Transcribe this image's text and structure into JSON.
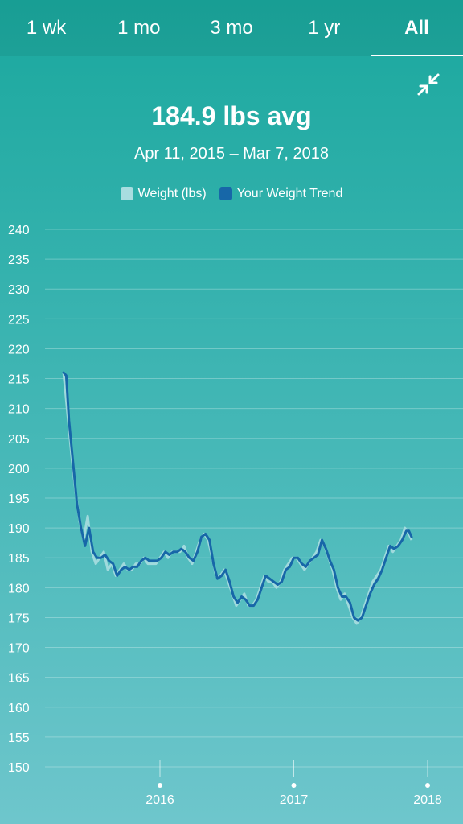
{
  "tabs": [
    {
      "label": "1 wk",
      "active": false
    },
    {
      "label": "1 mo",
      "active": false
    },
    {
      "label": "3 mo",
      "active": false
    },
    {
      "label": "1 yr",
      "active": false
    },
    {
      "label": "All",
      "active": true
    }
  ],
  "icons": {
    "collapse": "collapse-arrows-icon"
  },
  "summary": {
    "average": "184.9 lbs avg",
    "date_range": "Apr 11, 2015 – Mar 7, 2018"
  },
  "colors": {
    "weight": "#a8dde0",
    "trend": "#1767a8",
    "background_top": "#1aa89e",
    "background_bottom": "#6ec6cc"
  },
  "chart_data": {
    "type": "line",
    "xlim": [
      2015.27,
      2018.25
    ],
    "ylim": [
      150,
      240
    ],
    "y_ticks": [
      150,
      155,
      160,
      165,
      170,
      175,
      180,
      185,
      190,
      195,
      200,
      205,
      210,
      215,
      220,
      225,
      230,
      235,
      240
    ],
    "x_ticks": [
      {
        "value": 2016.0,
        "label": "2016"
      },
      {
        "value": 2017.0,
        "label": "2017"
      },
      {
        "value": 2018.0,
        "label": "2018"
      }
    ],
    "grid": true,
    "legend": "top-center",
    "series": [
      {
        "name": "Weight (lbs)",
        "style": "bars",
        "points": [
          [
            2015.28,
            216
          ],
          [
            2015.31,
            209
          ],
          [
            2015.34,
            202
          ],
          [
            2015.37,
            196
          ],
          [
            2015.4,
            191
          ],
          [
            2015.43,
            188
          ],
          [
            2015.46,
            192
          ],
          [
            2015.49,
            186
          ],
          [
            2015.52,
            184
          ],
          [
            2015.55,
            185
          ],
          [
            2015.58,
            186
          ],
          [
            2015.61,
            183
          ],
          [
            2015.64,
            184
          ],
          [
            2015.67,
            182
          ],
          [
            2015.7,
            183
          ],
          [
            2015.73,
            184
          ],
          [
            2015.76,
            183
          ],
          [
            2015.79,
            183
          ],
          [
            2015.82,
            184
          ],
          [
            2015.85,
            184
          ],
          [
            2015.88,
            185
          ],
          [
            2015.91,
            184
          ],
          [
            2015.94,
            184
          ],
          [
            2015.97,
            184
          ],
          [
            2016.0,
            185
          ],
          [
            2016.03,
            186
          ],
          [
            2016.06,
            185
          ],
          [
            2016.09,
            186
          ],
          [
            2016.12,
            186
          ],
          [
            2016.15,
            186
          ],
          [
            2016.18,
            187
          ],
          [
            2016.21,
            185
          ],
          [
            2016.24,
            184
          ],
          [
            2016.27,
            186
          ],
          [
            2016.3,
            188
          ],
          [
            2016.33,
            189
          ],
          [
            2016.36,
            188
          ],
          [
            2016.39,
            185
          ],
          [
            2016.42,
            182
          ],
          [
            2016.45,
            182
          ],
          [
            2016.48,
            183
          ],
          [
            2016.51,
            181
          ],
          [
            2016.54,
            179
          ],
          [
            2016.57,
            177
          ],
          [
            2016.6,
            178
          ],
          [
            2016.63,
            179
          ],
          [
            2016.66,
            177
          ],
          [
            2016.69,
            177
          ],
          [
            2016.72,
            178
          ],
          [
            2016.75,
            180
          ],
          [
            2016.78,
            182
          ],
          [
            2016.81,
            181
          ],
          [
            2016.84,
            181
          ],
          [
            2016.87,
            180
          ],
          [
            2016.9,
            181
          ],
          [
            2016.93,
            183
          ],
          [
            2016.96,
            184
          ],
          [
            2016.99,
            185
          ],
          [
            2017.02,
            185
          ],
          [
            2017.05,
            184
          ],
          [
            2017.08,
            183
          ],
          [
            2017.11,
            184
          ],
          [
            2017.14,
            185
          ],
          [
            2017.17,
            186
          ],
          [
            2017.2,
            188
          ],
          [
            2017.23,
            187
          ],
          [
            2017.26,
            185
          ],
          [
            2017.29,
            183
          ],
          [
            2017.32,
            180
          ],
          [
            2017.35,
            178
          ],
          [
            2017.38,
            179
          ],
          [
            2017.41,
            177
          ],
          [
            2017.44,
            175
          ],
          [
            2017.47,
            174
          ],
          [
            2017.5,
            175
          ],
          [
            2017.53,
            177
          ],
          [
            2017.56,
            179
          ],
          [
            2017.59,
            181
          ],
          [
            2017.62,
            182
          ],
          [
            2017.65,
            183
          ],
          [
            2017.68,
            185
          ],
          [
            2017.71,
            187
          ],
          [
            2017.74,
            186
          ],
          [
            2017.77,
            187
          ],
          [
            2017.8,
            188
          ],
          [
            2017.83,
            190
          ],
          [
            2017.86,
            189
          ],
          [
            2017.88,
            188
          ]
        ]
      },
      {
        "name": "Your Weight Trend",
        "style": "line",
        "points": [
          [
            2015.28,
            216
          ],
          [
            2015.3,
            215.5
          ],
          [
            2015.32,
            208
          ],
          [
            2015.35,
            201
          ],
          [
            2015.38,
            194
          ],
          [
            2015.41,
            190
          ],
          [
            2015.44,
            187
          ],
          [
            2015.47,
            190
          ],
          [
            2015.5,
            186
          ],
          [
            2015.53,
            185
          ],
          [
            2015.56,
            185
          ],
          [
            2015.59,
            185.5
          ],
          [
            2015.62,
            184.5
          ],
          [
            2015.65,
            184
          ],
          [
            2015.68,
            182
          ],
          [
            2015.71,
            183
          ],
          [
            2015.74,
            183.5
          ],
          [
            2015.77,
            183
          ],
          [
            2015.8,
            183.5
          ],
          [
            2015.83,
            183.5
          ],
          [
            2015.86,
            184.5
          ],
          [
            2015.89,
            185
          ],
          [
            2015.92,
            184.5
          ],
          [
            2015.95,
            184.5
          ],
          [
            2015.98,
            184.5
          ],
          [
            2016.01,
            185
          ],
          [
            2016.04,
            186
          ],
          [
            2016.07,
            185.5
          ],
          [
            2016.1,
            186
          ],
          [
            2016.13,
            186
          ],
          [
            2016.16,
            186.5
          ],
          [
            2016.19,
            186
          ],
          [
            2016.22,
            185
          ],
          [
            2016.25,
            184.5
          ],
          [
            2016.28,
            186
          ],
          [
            2016.31,
            188.5
          ],
          [
            2016.34,
            189
          ],
          [
            2016.37,
            188
          ],
          [
            2016.4,
            184
          ],
          [
            2016.43,
            181.5
          ],
          [
            2016.46,
            182
          ],
          [
            2016.49,
            183
          ],
          [
            2016.52,
            181
          ],
          [
            2016.55,
            178.5
          ],
          [
            2016.58,
            177.5
          ],
          [
            2016.61,
            178.5
          ],
          [
            2016.64,
            178
          ],
          [
            2016.67,
            177
          ],
          [
            2016.7,
            177
          ],
          [
            2016.73,
            178
          ],
          [
            2016.76,
            180
          ],
          [
            2016.79,
            182
          ],
          [
            2016.82,
            181.5
          ],
          [
            2016.85,
            181
          ],
          [
            2016.88,
            180.5
          ],
          [
            2016.91,
            181
          ],
          [
            2016.94,
            183
          ],
          [
            2016.97,
            183.5
          ],
          [
            2017.0,
            185
          ],
          [
            2017.03,
            185
          ],
          [
            2017.06,
            184
          ],
          [
            2017.09,
            183.5
          ],
          [
            2017.12,
            184.5
          ],
          [
            2017.15,
            185
          ],
          [
            2017.18,
            185.5
          ],
          [
            2017.21,
            188
          ],
          [
            2017.24,
            186.5
          ],
          [
            2017.27,
            184.5
          ],
          [
            2017.3,
            183
          ],
          [
            2017.33,
            180
          ],
          [
            2017.36,
            178.5
          ],
          [
            2017.39,
            178.5
          ],
          [
            2017.42,
            177.5
          ],
          [
            2017.45,
            175
          ],
          [
            2017.48,
            174.5
          ],
          [
            2017.51,
            175
          ],
          [
            2017.54,
            177
          ],
          [
            2017.57,
            179
          ],
          [
            2017.6,
            180.5
          ],
          [
            2017.63,
            181.5
          ],
          [
            2017.66,
            183
          ],
          [
            2017.69,
            185
          ],
          [
            2017.72,
            187
          ],
          [
            2017.75,
            186.5
          ],
          [
            2017.78,
            187
          ],
          [
            2017.81,
            188
          ],
          [
            2017.84,
            189.5
          ],
          [
            2017.86,
            189.5
          ],
          [
            2017.88,
            188.5
          ]
        ]
      }
    ]
  }
}
